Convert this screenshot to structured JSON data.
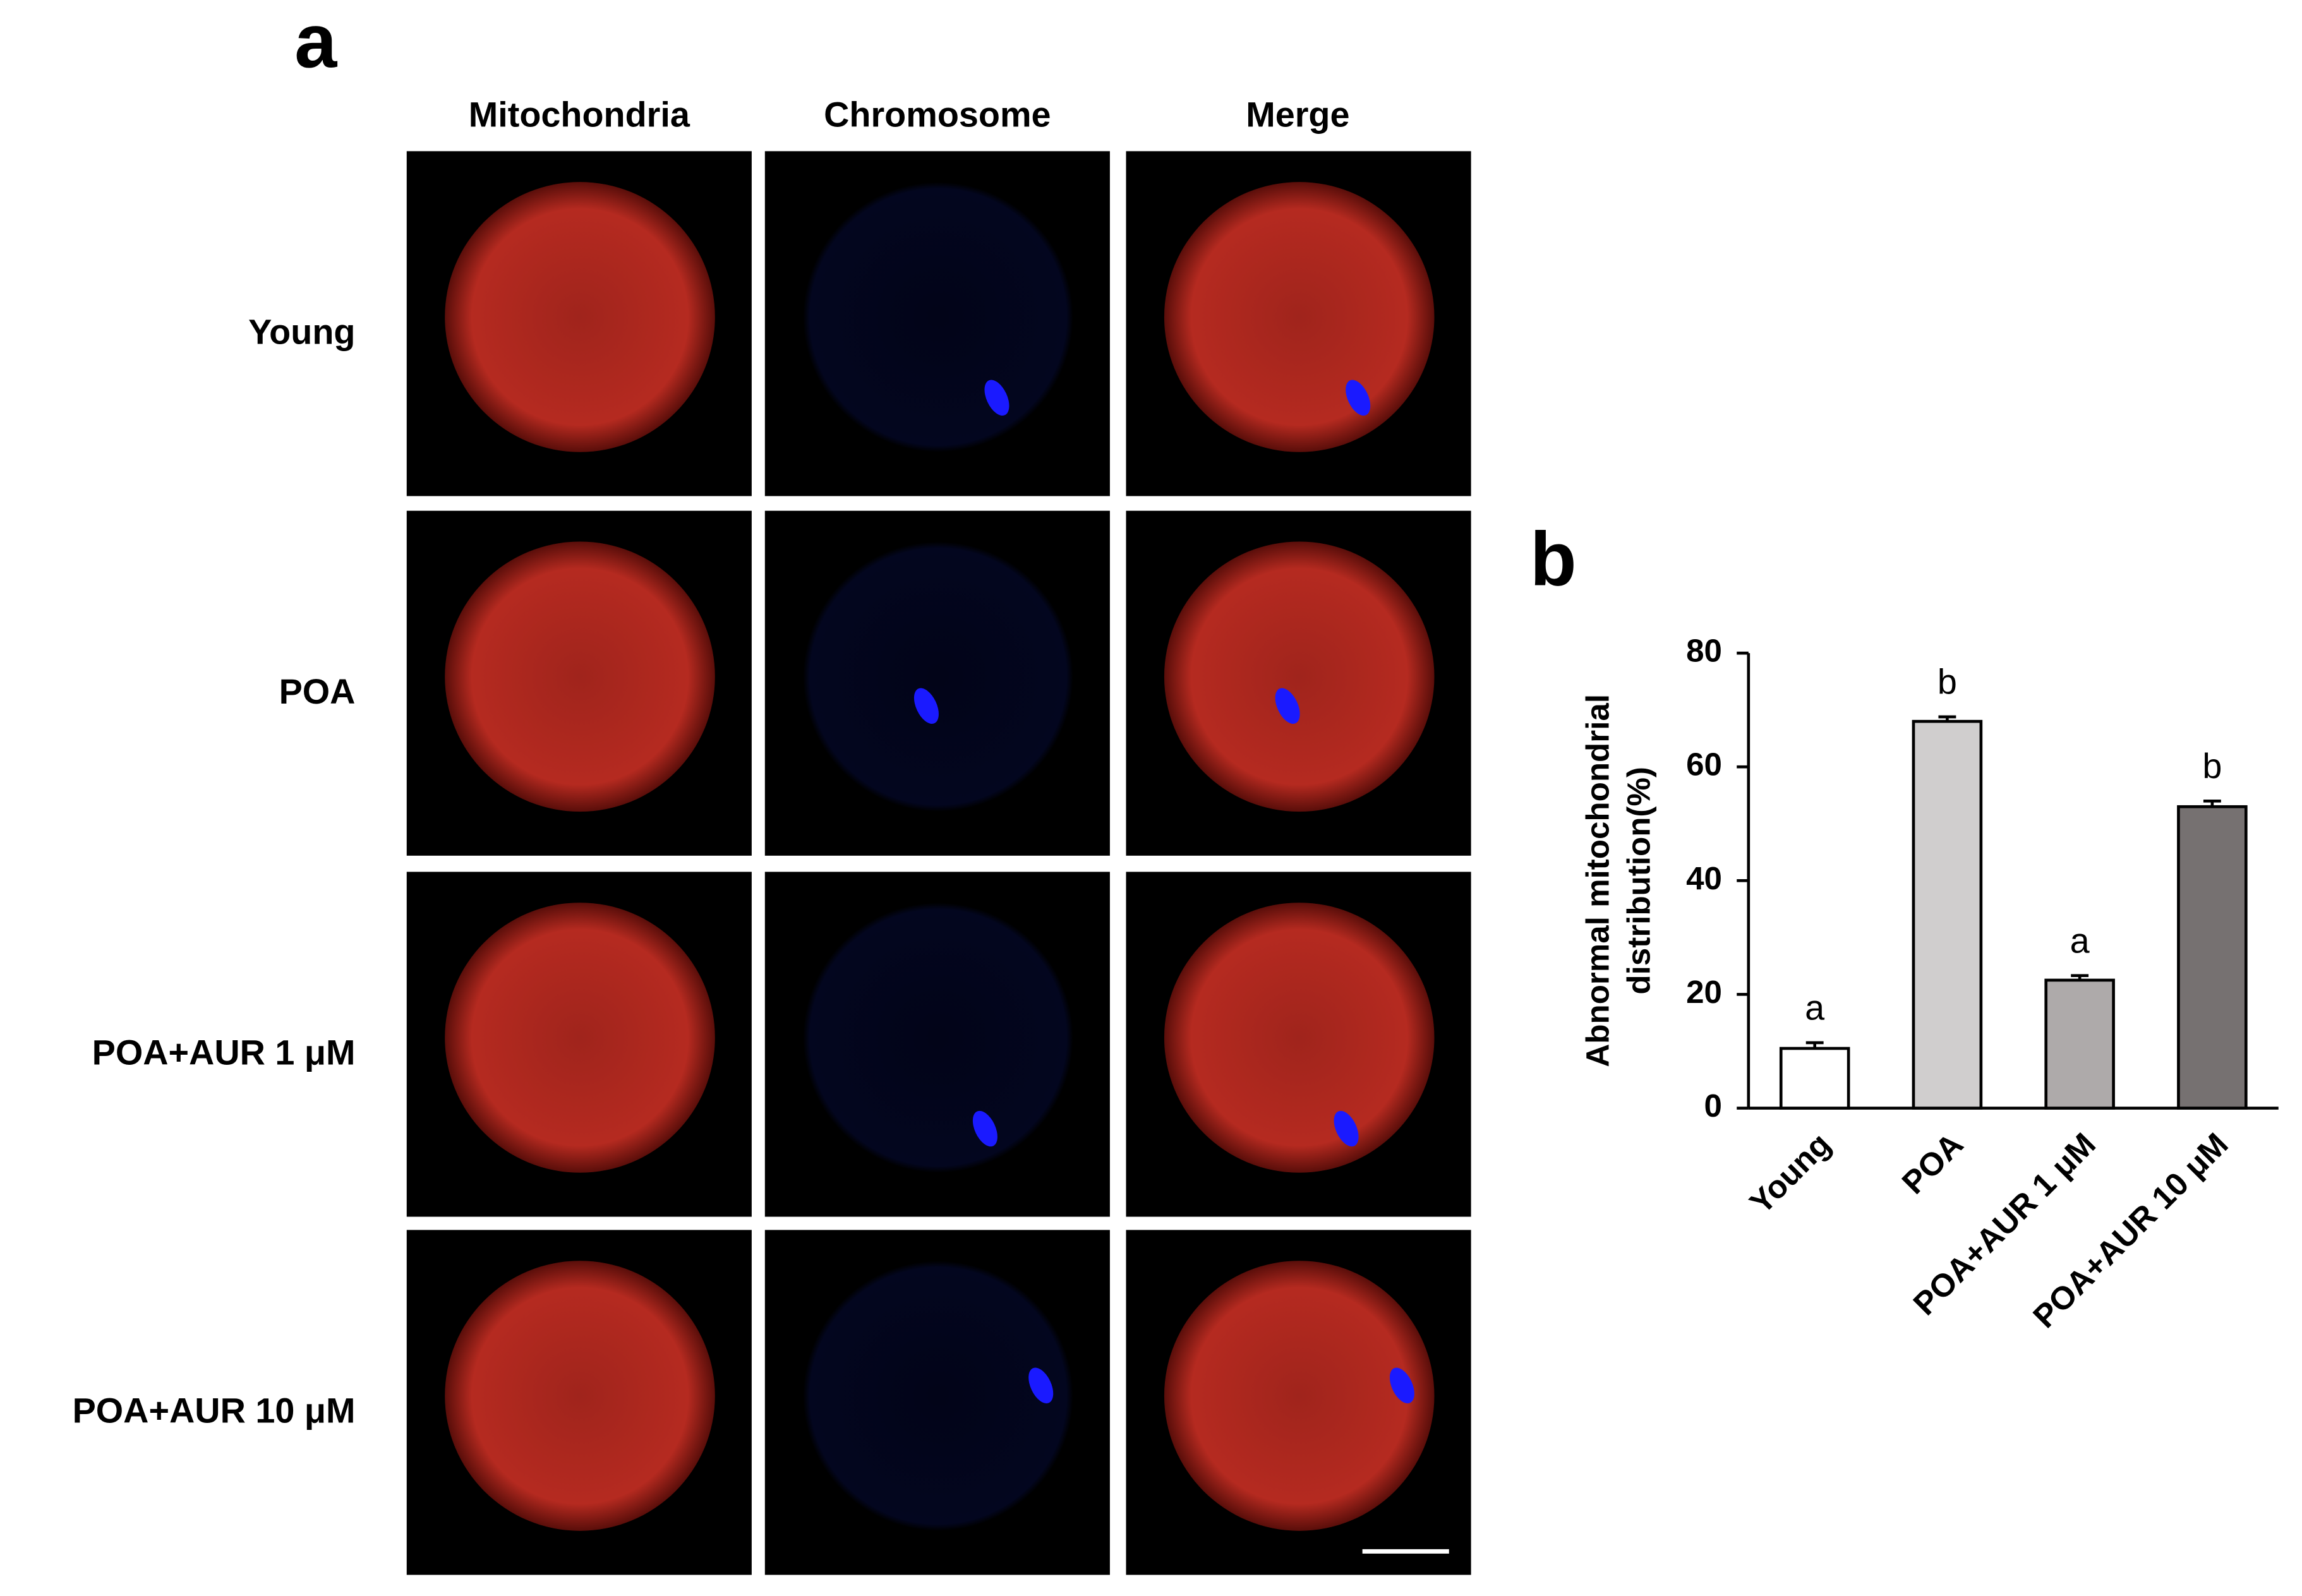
{
  "panel_a": {
    "label": "a",
    "columns": [
      "Mitochondria",
      "Chromosome",
      "Merge"
    ],
    "rows": [
      "Young",
      "POA",
      "POA+AUR 1 μM",
      "POA+AUR 10 μM"
    ]
  },
  "panel_b_label": "b",
  "chart_data": {
    "type": "bar",
    "ylabel": [
      "Abnormal mitochondrial",
      "distribution(%)"
    ],
    "categories": [
      "Young",
      "POA",
      "POA+AUR 1 μM",
      "POA+AUR 10 μM"
    ],
    "values": [
      10.5,
      68,
      22.5,
      53
    ],
    "errors": [
      1,
      0.8,
      0.8,
      1
    ],
    "annotations": [
      "a",
      "b",
      "a",
      "b"
    ],
    "colors": [
      "#ffffff",
      "#d0cece",
      "#aeaaaa",
      "#767171"
    ],
    "ylim": [
      0,
      80
    ],
    "yticks": [
      0,
      20,
      40,
      60,
      80
    ],
    "grid": false
  }
}
